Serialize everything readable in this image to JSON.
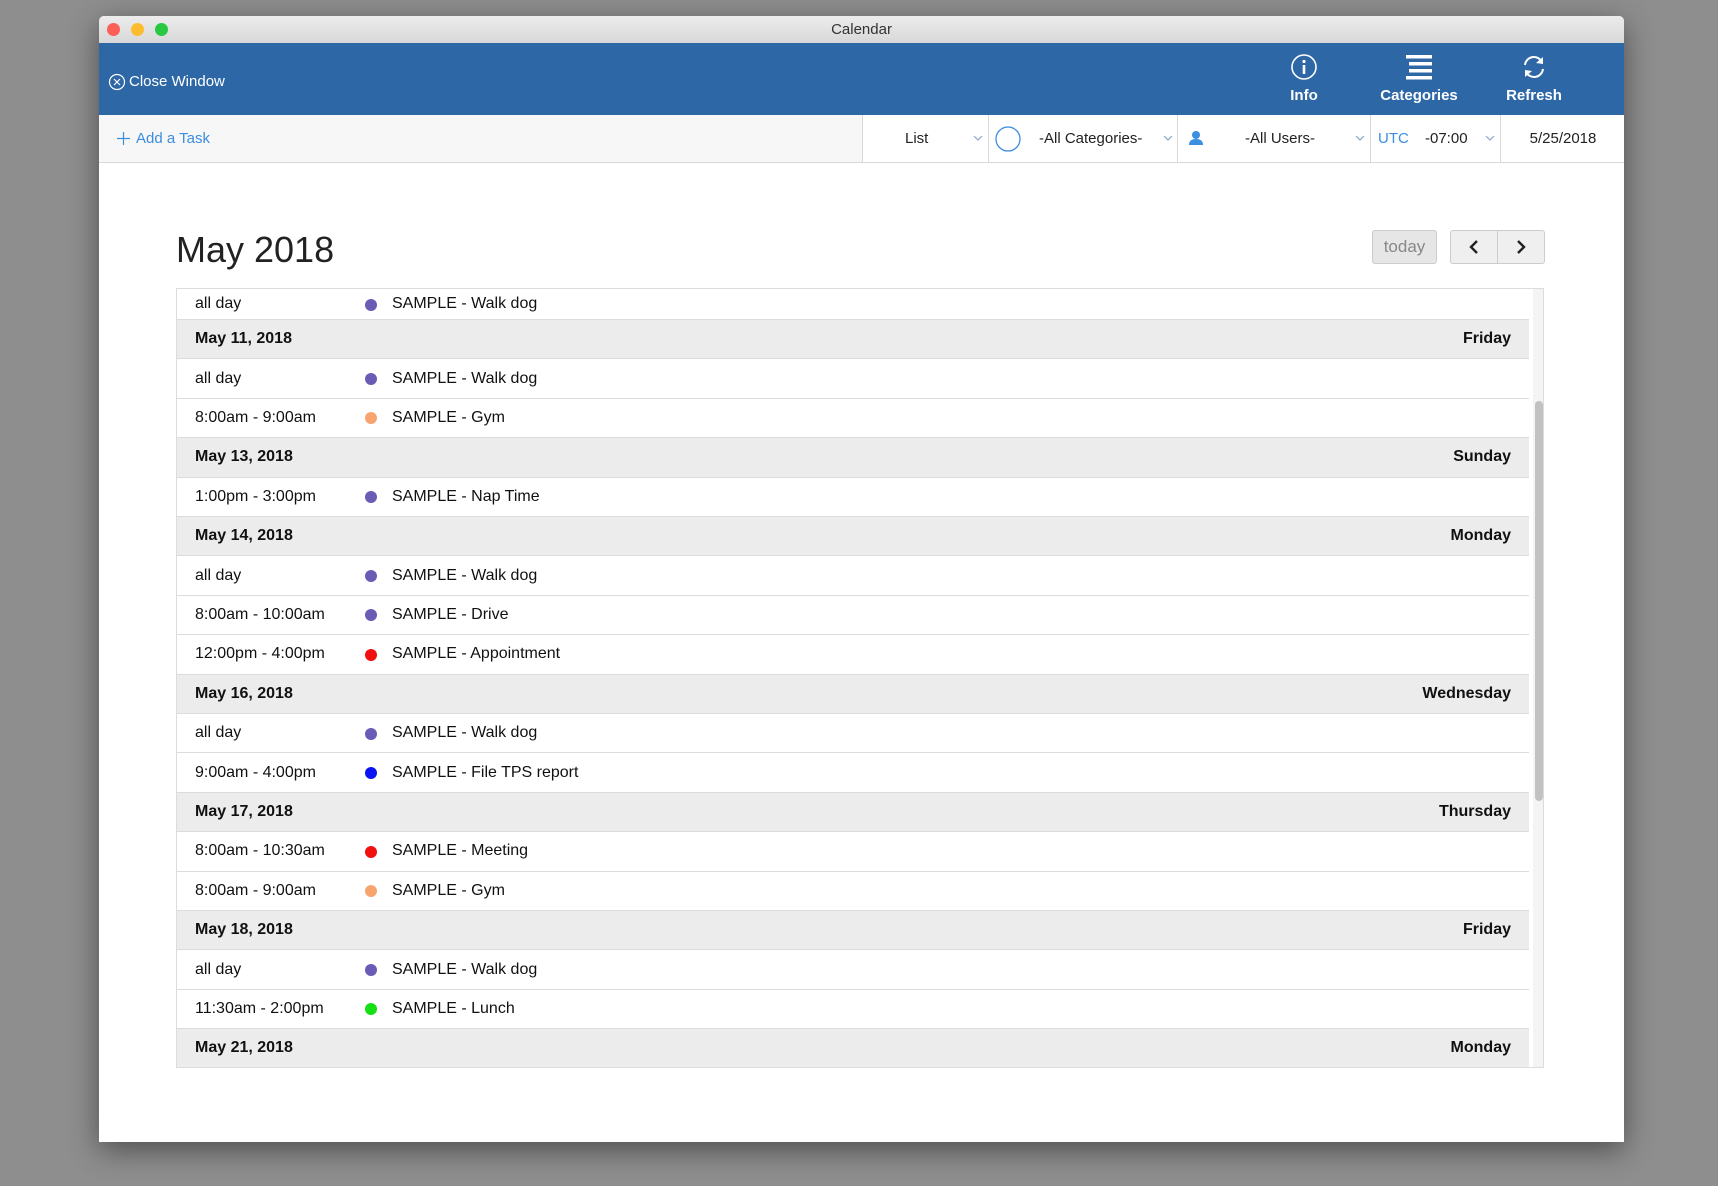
{
  "window": {
    "title": "Calendar"
  },
  "header": {
    "close": "Close Window",
    "buttons": [
      "Info",
      "Categories",
      "Refresh"
    ]
  },
  "toolbar": {
    "add_task": "Add a Task",
    "view": "List",
    "categories": "-All Categories-",
    "users": "-All Users-",
    "timezone": "UTC",
    "offset": "-07:00",
    "date": "5/25/2018"
  },
  "calendar": {
    "month": "May 2018",
    "today": "today",
    "leading_events": [
      {
        "time": "all day",
        "title": "SAMPLE - Walk dog",
        "color": "#6a5bb5"
      }
    ],
    "days": [
      {
        "date": "May 11, 2018",
        "weekday": "Friday",
        "events": [
          {
            "time": "all day",
            "title": "SAMPLE - Walk dog",
            "color": "#6a5bb5"
          },
          {
            "time": "8:00am - 9:00am",
            "title": "SAMPLE - Gym",
            "color": "#f7a46f"
          }
        ]
      },
      {
        "date": "May 13, 2018",
        "weekday": "Sunday",
        "events": [
          {
            "time": "1:00pm - 3:00pm",
            "title": "SAMPLE - Nap Time",
            "color": "#6a5bb5"
          }
        ]
      },
      {
        "date": "May 14, 2018",
        "weekday": "Monday",
        "events": [
          {
            "time": "all day",
            "title": "SAMPLE - Walk dog",
            "color": "#6a5bb5"
          },
          {
            "time": "8:00am - 10:00am",
            "title": "SAMPLE - Drive",
            "color": "#6a5bb5"
          },
          {
            "time": "12:00pm - 4:00pm",
            "title": "SAMPLE - Appointment",
            "color": "#f01010"
          }
        ]
      },
      {
        "date": "May 16, 2018",
        "weekday": "Wednesday",
        "events": [
          {
            "time": "all day",
            "title": "SAMPLE - Walk dog",
            "color": "#6a5bb5"
          },
          {
            "time": "9:00am - 4:00pm",
            "title": "SAMPLE - File TPS report",
            "color": "#0a14f0"
          }
        ]
      },
      {
        "date": "May 17, 2018",
        "weekday": "Thursday",
        "events": [
          {
            "time": "8:00am - 10:30am",
            "title": "SAMPLE - Meeting",
            "color": "#f01010"
          },
          {
            "time": "8:00am - 9:00am",
            "title": "SAMPLE - Gym",
            "color": "#f7a46f"
          }
        ]
      },
      {
        "date": "May 18, 2018",
        "weekday": "Friday",
        "events": [
          {
            "time": "all day",
            "title": "SAMPLE - Walk dog",
            "color": "#6a5bb5"
          },
          {
            "time": "11:30am - 2:00pm",
            "title": "SAMPLE - Lunch",
            "color": "#14e014"
          }
        ]
      },
      {
        "date": "May 21, 2018",
        "weekday": "Monday",
        "events": []
      }
    ]
  }
}
